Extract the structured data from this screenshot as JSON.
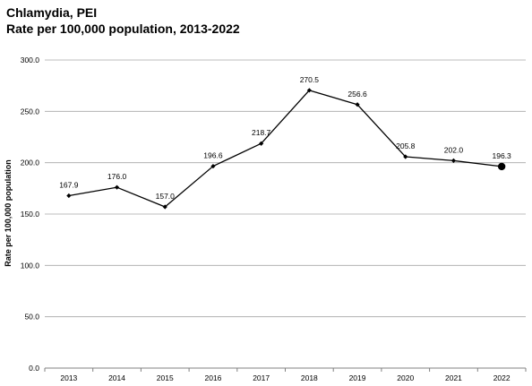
{
  "chart_data": {
    "type": "line",
    "title": "Chlamydia, PEI",
    "subtitle": "Rate per 100,000 population, 2013-2022",
    "xlabel": "",
    "ylabel": "Rate per 100,000 population",
    "categories": [
      "2013",
      "2014",
      "2015",
      "2016",
      "2017",
      "2018",
      "2019",
      "2020",
      "2021",
      "2022"
    ],
    "series": [
      {
        "values": [
          167.9,
          176.0,
          157.0,
          196.6,
          218.7,
          270.5,
          256.6,
          205.8,
          202.0,
          196.3
        ]
      }
    ],
    "data_labels": [
      "167.9",
      "176.0",
      "157.0",
      "196.6",
      "218.7",
      "270.5",
      "256.6",
      "205.8",
      "202.0",
      "196.3"
    ],
    "ylim": [
      0,
      300
    ],
    "yticks": [
      "0.0",
      "50.0",
      "100.0",
      "150.0",
      "200.0",
      "250.0",
      "300.0"
    ],
    "grid": true,
    "legend": "none",
    "colors": {
      "line": "#000000",
      "grid": "#a6a6a6",
      "axis": "#808080"
    }
  }
}
